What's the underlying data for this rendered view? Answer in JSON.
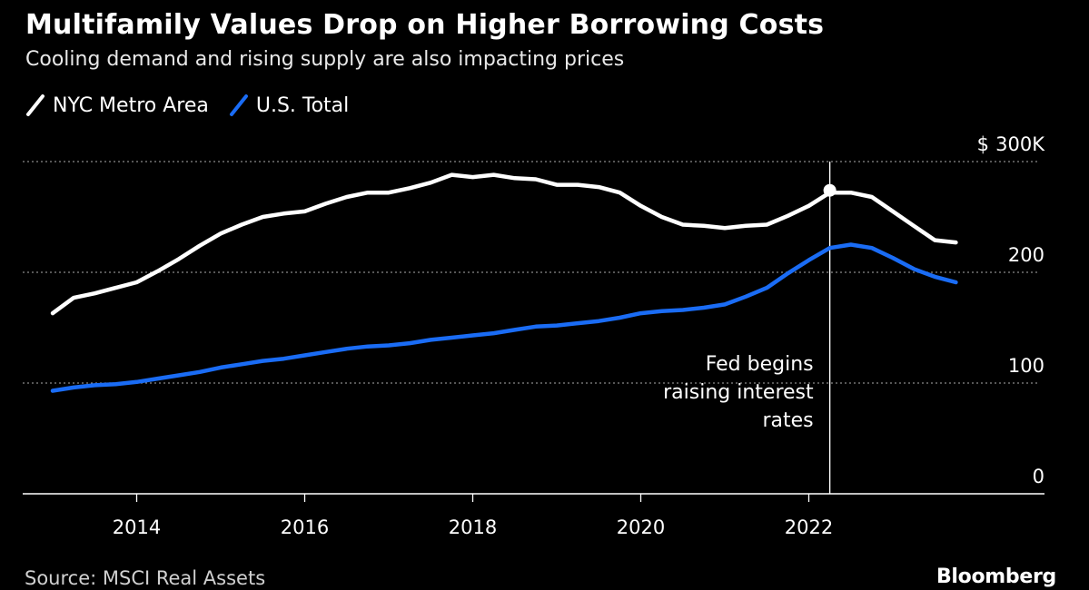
{
  "header": {
    "title": "Multifamily Values Drop on Higher Borrowing Costs",
    "subtitle": "Cooling demand and rising supply are also impacting prices"
  },
  "footer": {
    "source": "Source: MSCI Real Assets",
    "brand": "Bloomberg"
  },
  "colors": {
    "background": "#000000",
    "nyc": "#ffffff",
    "us": "#1a6cf5",
    "grid": "#8a8a8a",
    "text": "#ffffff"
  },
  "chart_data": {
    "type": "line",
    "title": "Multifamily Values Drop on Higher Borrowing Costs",
    "subtitle": "Cooling demand and rising supply are also impacting prices",
    "xlabel": "",
    "ylabel": "",
    "y_unit_label": "$",
    "ylim": [
      0,
      300
    ],
    "y_ticks": [
      {
        "value": 300,
        "label": "300K"
      },
      {
        "value": 200,
        "label": "200"
      },
      {
        "value": 100,
        "label": "100"
      },
      {
        "value": 0,
        "label": "0"
      }
    ],
    "xlim": [
      2013.0,
      2024.5
    ],
    "x_ticks": [
      {
        "value": 2014,
        "label": "2014"
      },
      {
        "value": 2016,
        "label": "2016"
      },
      {
        "value": 2018,
        "label": "2018"
      },
      {
        "value": 2020,
        "label": "2020"
      },
      {
        "value": 2022,
        "label": "2022"
      }
    ],
    "grid": true,
    "legend_position": "top-left",
    "x": [
      2013.0,
      2013.25,
      2013.5,
      2013.75,
      2014.0,
      2014.25,
      2014.5,
      2014.75,
      2015.0,
      2015.25,
      2015.5,
      2015.75,
      2016.0,
      2016.25,
      2016.5,
      2016.75,
      2017.0,
      2017.25,
      2017.5,
      2017.75,
      2018.0,
      2018.25,
      2018.5,
      2018.75,
      2019.0,
      2019.25,
      2019.5,
      2019.75,
      2020.0,
      2020.25,
      2020.5,
      2020.75,
      2021.0,
      2021.25,
      2021.5,
      2021.75,
      2022.0,
      2022.25,
      2022.5,
      2022.75,
      2023.0,
      2023.25,
      2023.5,
      2023.75
    ],
    "series": [
      {
        "name": "NYC Metro Area",
        "color": "#ffffff",
        "values": [
          163,
          177,
          181,
          186,
          191,
          201,
          212,
          224,
          235,
          243,
          250,
          253,
          255,
          262,
          268,
          272,
          272,
          276,
          281,
          288,
          286,
          288,
          285,
          284,
          279,
          279,
          277,
          272,
          260,
          250,
          243,
          242,
          240,
          242,
          243,
          251,
          260,
          272,
          272,
          268,
          255,
          242,
          229,
          227
        ]
      },
      {
        "name": "U.S. Total",
        "color": "#1a6cf5",
        "values": [
          93,
          96,
          98,
          99,
          101,
          104,
          107,
          110,
          114,
          117,
          120,
          122,
          125,
          128,
          131,
          133,
          134,
          136,
          139,
          141,
          143,
          145,
          148,
          151,
          152,
          154,
          156,
          159,
          163,
          165,
          166,
          168,
          171,
          178,
          186,
          199,
          211,
          222,
          225,
          222,
          213,
          203,
          196,
          191
        ]
      }
    ],
    "annotation": {
      "x": 2022.25,
      "text_lines": [
        "Fed begins",
        "raising interest",
        "rates"
      ],
      "marker_series": "NYC Metro Area",
      "marker_value": 274
    }
  }
}
